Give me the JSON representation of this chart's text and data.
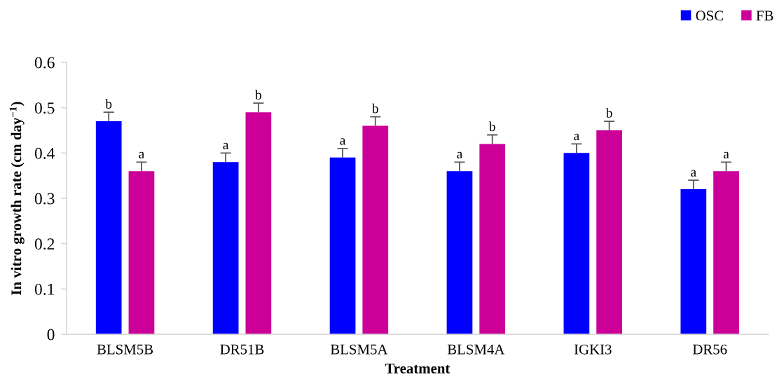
{
  "chart_data": {
    "type": "bar",
    "xlabel": "Treatment",
    "ylabel": "In vitro growth rate (cm day$^{−1}$)",
    "categories": [
      "BLSM5B",
      "DR51B",
      "BLSM5A",
      "BLSM4A",
      "IGKI3",
      "DR56"
    ],
    "series": [
      {
        "name": "OSC",
        "color": "#0000ff",
        "values": [
          0.47,
          0.38,
          0.39,
          0.36,
          0.4,
          0.32
        ],
        "errors": [
          [
            0.47,
            0.49
          ],
          [
            0.38,
            0.4
          ],
          [
            0.39,
            0.41
          ],
          [
            0.36,
            0.38
          ],
          [
            0.4,
            0.42
          ],
          [
            0.32,
            0.34
          ]
        ],
        "value_labels": [
          "b",
          "a",
          "a",
          "a",
          "a",
          "a"
        ]
      },
      {
        "name": "FB",
        "color": "#cc0099",
        "values": [
          0.36,
          0.49,
          0.46,
          0.42,
          0.45,
          0.36
        ],
        "errors": [
          [
            0.36,
            0.38
          ],
          [
            0.49,
            0.51
          ],
          [
            0.46,
            0.48
          ],
          [
            0.42,
            0.44
          ],
          [
            0.45,
            0.47
          ],
          [
            0.36,
            0.38
          ]
        ],
        "value_labels": [
          "a",
          "b",
          "b",
          "b",
          "b",
          "a"
        ]
      }
    ],
    "ylim": [
      0,
      0.6
    ],
    "yticks": [
      0,
      0.1,
      0.2,
      0.3,
      0.4,
      0.5,
      0.6
    ],
    "legend": "top right"
  }
}
